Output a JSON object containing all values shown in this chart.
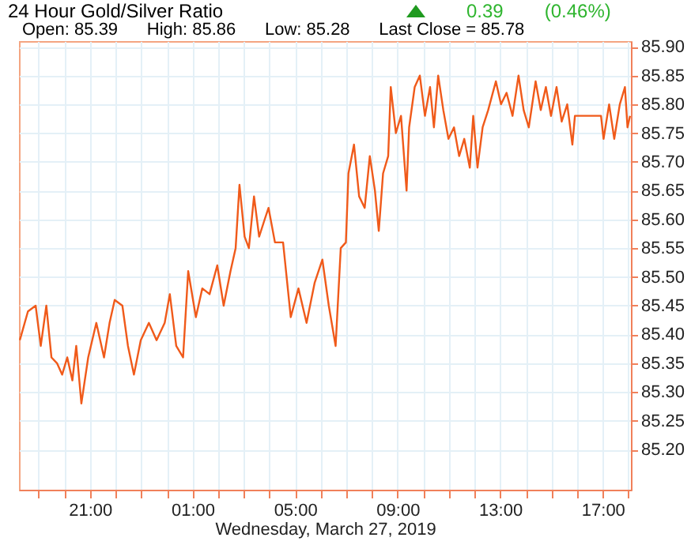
{
  "chart_data": {
    "type": "line",
    "title": "24 Hour Gold/Silver Ratio",
    "subtitle": "Open: 85.39      High: 85.86      Low: 85.28      Last Close = 85.78",
    "annotations": [
      "0.39",
      "(0.46%)"
    ],
    "xlabel": "Wednesday, March 27, 2019",
    "x": [
      "2019-03-26T18:16",
      "2019-03-26T18:35",
      "2019-03-26T18:53",
      "2019-03-26T19:05",
      "2019-03-26T19:18",
      "2019-03-26T19:30",
      "2019-03-26T19:43",
      "2019-03-26T19:55",
      "2019-03-26T20:07",
      "2019-03-26T20:19",
      "2019-03-26T20:28",
      "2019-03-26T20:40",
      "2019-03-26T20:56",
      "2019-03-26T21:15",
      "2019-03-26T21:33",
      "2019-03-26T21:46",
      "2019-03-26T21:58",
      "2019-03-26T22:16",
      "2019-03-26T22:29",
      "2019-03-26T22:43",
      "2019-03-26T22:59",
      "2019-03-26T23:18",
      "2019-03-26T23:36",
      "2019-03-26T23:55",
      "2019-03-27T00:07",
      "2019-03-27T00:22",
      "2019-03-27T00:38",
      "2019-03-27T00:50",
      "2019-03-27T01:08",
      "2019-03-27T01:23",
      "2019-03-27T01:40",
      "2019-03-27T01:58",
      "2019-03-27T02:13",
      "2019-03-27T02:29",
      "2019-03-27T02:41",
      "2019-03-27T02:50",
      "2019-03-27T03:02",
      "2019-03-27T03:12",
      "2019-03-27T03:24",
      "2019-03-27T03:36",
      "2019-03-27T03:49",
      "2019-03-27T03:58",
      "2019-03-27T04:13",
      "2019-03-27T04:32",
      "2019-03-27T04:50",
      "2019-03-27T05:08",
      "2019-03-27T05:27",
      "2019-03-27T05:46",
      "2019-03-27T06:04",
      "2019-03-27T06:19",
      "2019-03-27T06:35",
      "2019-03-27T06:47",
      "2019-03-27T06:59",
      "2019-03-27T07:05",
      "2019-03-27T07:18",
      "2019-03-27T07:30",
      "2019-03-27T07:43",
      "2019-03-27T07:55",
      "2019-03-27T08:07",
      "2019-03-27T08:16",
      "2019-03-27T08:26",
      "2019-03-27T08:38",
      "2019-03-27T08:44",
      "2019-03-27T08:56",
      "2019-03-27T09:08",
      "2019-03-27T09:21",
      "2019-03-27T09:27",
      "2019-03-27T09:40",
      "2019-03-27T09:52",
      "2019-03-27T10:04",
      "2019-03-27T10:16",
      "2019-03-27T10:25",
      "2019-03-27T10:35",
      "2019-03-27T10:47",
      "2019-03-27T10:59",
      "2019-03-27T11:12",
      "2019-03-27T11:24",
      "2019-03-27T11:36",
      "2019-03-27T11:49",
      "2019-03-27T11:57",
      "2019-03-27T12:07",
      "2019-03-27T12:19",
      "2019-03-27T12:32",
      "2019-03-27T12:50",
      "2019-03-27T13:02",
      "2019-03-27T13:15",
      "2019-03-27T13:29",
      "2019-03-27T13:43",
      "2019-03-27T13:55",
      "2019-03-27T14:07",
      "2019-03-27T14:23",
      "2019-03-27T14:35",
      "2019-03-27T14:47",
      "2019-03-27T14:59",
      "2019-03-27T15:12",
      "2019-03-27T15:24",
      "2019-03-27T15:37",
      "2019-03-27T15:49",
      "2019-03-27T15:55",
      "2019-03-27T16:56",
      "2019-03-27T17:02",
      "2019-03-27T17:15",
      "2019-03-27T17:27",
      "2019-03-27T17:40",
      "2019-03-27T17:52",
      "2019-03-27T17:58",
      "2019-03-27T18:04"
    ],
    "series": [
      {
        "color": "#f05a1a",
        "values": [
          85.39,
          85.44,
          85.45,
          85.38,
          85.45,
          85.36,
          85.35,
          85.33,
          85.36,
          85.32,
          85.38,
          85.28,
          85.36,
          85.42,
          85.36,
          85.42,
          85.46,
          85.45,
          85.38,
          85.33,
          85.39,
          85.42,
          85.39,
          85.42,
          85.47,
          85.38,
          85.36,
          85.51,
          85.43,
          85.48,
          85.47,
          85.52,
          85.45,
          85.51,
          85.55,
          85.66,
          85.57,
          85.55,
          85.64,
          85.57,
          85.6,
          85.62,
          85.56,
          85.56,
          85.43,
          85.48,
          85.42,
          85.49,
          85.53,
          85.45,
          85.38,
          85.55,
          85.56,
          85.68,
          85.73,
          85.64,
          85.62,
          85.71,
          85.65,
          85.58,
          85.68,
          85.71,
          85.83,
          85.75,
          85.78,
          85.65,
          85.76,
          85.83,
          85.85,
          85.78,
          85.83,
          85.76,
          85.85,
          85.79,
          85.74,
          85.76,
          85.71,
          85.74,
          85.69,
          85.78,
          85.69,
          85.76,
          85.79,
          85.84,
          85.8,
          85.82,
          85.78,
          85.85,
          85.79,
          85.76,
          85.84,
          85.79,
          85.83,
          85.78,
          85.83,
          85.77,
          85.8,
          85.73,
          85.78,
          85.78,
          85.74,
          85.8,
          85.74,
          85.8,
          85.83,
          85.76,
          85.78
        ]
      }
    ],
    "xlim": [
      "2019-03-26T18:14",
      "2019-03-27T18:06"
    ],
    "ylim": [
      85.13,
      85.91
    ],
    "xticks": [
      {
        "value": "2019-03-26T19:00",
        "label": null
      },
      {
        "value": "2019-03-26T20:00",
        "label": null
      },
      {
        "value": "2019-03-26T21:00",
        "label": "21:00"
      },
      {
        "value": "2019-03-26T22:00",
        "label": null
      },
      {
        "value": "2019-03-26T23:00",
        "label": null
      },
      {
        "value": "2019-03-27T00:00",
        "label": null
      },
      {
        "value": "2019-03-27T01:00",
        "label": "01:00"
      },
      {
        "value": "2019-03-27T02:00",
        "label": null
      },
      {
        "value": "2019-03-27T03:00",
        "label": null
      },
      {
        "value": "2019-03-27T04:00",
        "label": null
      },
      {
        "value": "2019-03-27T05:00",
        "label": "05:00"
      },
      {
        "value": "2019-03-27T06:00",
        "label": null
      },
      {
        "value": "2019-03-27T07:00",
        "label": null
      },
      {
        "value": "2019-03-27T08:00",
        "label": null
      },
      {
        "value": "2019-03-27T09:00",
        "label": "09:00"
      },
      {
        "value": "2019-03-27T10:00",
        "label": null
      },
      {
        "value": "2019-03-27T11:00",
        "label": null
      },
      {
        "value": "2019-03-27T12:00",
        "label": null
      },
      {
        "value": "2019-03-27T13:00",
        "label": "13:00"
      },
      {
        "value": "2019-03-27T14:00",
        "label": null
      },
      {
        "value": "2019-03-27T15:00",
        "label": null
      },
      {
        "value": "2019-03-27T16:00",
        "label": null
      },
      {
        "value": "2019-03-27T17:00",
        "label": "17:00"
      },
      {
        "value": "2019-03-27T18:00",
        "label": null
      }
    ],
    "yticks": [
      {
        "value": 85.2,
        "label": "85.20"
      },
      {
        "value": 85.25,
        "label": "85.25"
      },
      {
        "value": 85.3,
        "label": "85.30"
      },
      {
        "value": 85.35,
        "label": "85.35"
      },
      {
        "value": 85.4,
        "label": "85.40"
      },
      {
        "value": 85.45,
        "label": "85.45"
      },
      {
        "value": 85.5,
        "label": "85.50"
      },
      {
        "value": 85.55,
        "label": "85.55"
      },
      {
        "value": 85.6,
        "label": "85.60"
      },
      {
        "value": 85.65,
        "label": "85.65"
      },
      {
        "value": 85.7,
        "label": "85.70"
      },
      {
        "value": 85.75,
        "label": "85.75"
      },
      {
        "value": 85.8,
        "label": "85.80"
      },
      {
        "value": 85.85,
        "label": "85.85"
      },
      {
        "value": 85.9,
        "label": "85.90"
      }
    ],
    "grid": true,
    "marker": "none",
    "line_style": "solid"
  }
}
